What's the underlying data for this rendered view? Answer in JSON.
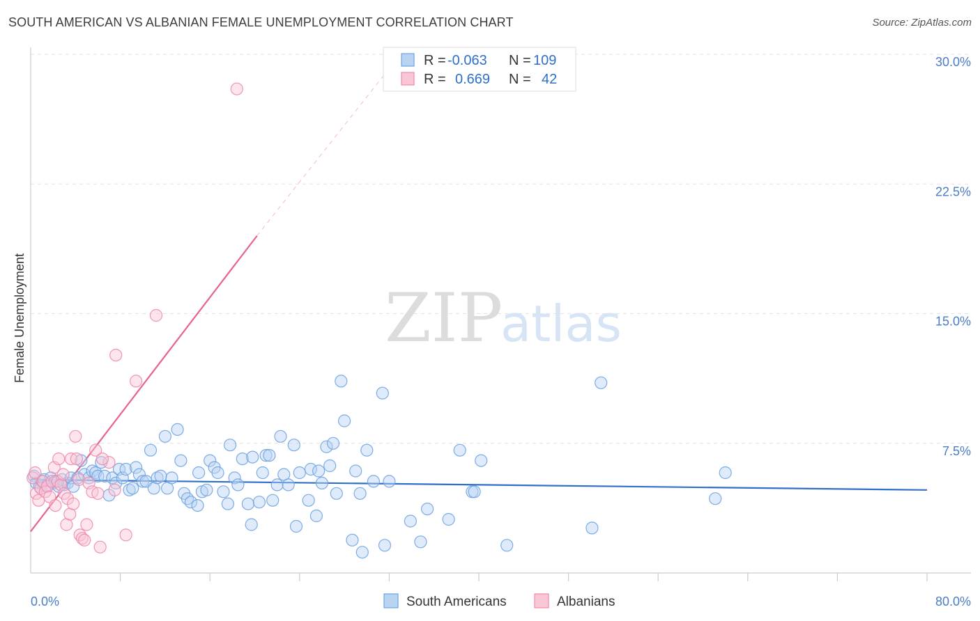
{
  "header": {
    "title": "SOUTH AMERICAN VS ALBANIAN FEMALE UNEMPLOYMENT CORRELATION CHART",
    "source": "Source: ZipAtlas.com"
  },
  "colors": {
    "blue": "#6fa3e0",
    "blue_fill": "#b9d3f3",
    "blue_line": "#2f6fc9",
    "pink": "#f08aab",
    "pink_fill": "#f9c6d6",
    "pink_line": "#e8628d",
    "axis_text": "#4a7cc7"
  },
  "chart_data": {
    "type": "scatter",
    "title": "SOUTH AMERICAN VS ALBANIAN FEMALE UNEMPLOYMENT CORRELATION CHART",
    "xlabel": "",
    "ylabel": "Female Unemployment",
    "xlim": [
      0,
      80
    ],
    "ylim": [
      0,
      30
    ],
    "x_tick_labels": [
      "0.0%",
      "80.0%"
    ],
    "y_ticks": [
      7.5,
      15.0,
      22.5,
      30.0
    ],
    "y_tick_labels": [
      "7.5%",
      "15.0%",
      "22.5%",
      "30.0%"
    ],
    "grid": true,
    "legend": {
      "position": "top-center",
      "entries": [
        {
          "series": "South Americans",
          "r_label": "R =",
          "r_value": "-0.063",
          "n_label": "N =",
          "n_value": "109"
        },
        {
          "series": "Albanians",
          "r_label": "R =",
          "r_value": "0.669",
          "n_label": "N =",
          "n_value": "42"
        }
      ]
    },
    "bottom_legend": [
      "South Americans",
      "Albanians"
    ],
    "watermark": [
      "ZIP",
      "atlas"
    ],
    "series": [
      {
        "name": "South Americans",
        "color": "#6fa3e0",
        "trend": {
          "x": [
            0,
            80
          ],
          "y": [
            5.4,
            4.8
          ],
          "style": "solid"
        },
        "points": [
          [
            0.3,
            5.6
          ],
          [
            0.5,
            5.2
          ],
          [
            0.8,
            5.0
          ],
          [
            1.0,
            5.3
          ],
          [
            1.2,
            5.4
          ],
          [
            1.5,
            5.1
          ],
          [
            1.8,
            5.5
          ],
          [
            2.0,
            5.2
          ],
          [
            2.2,
            5.3
          ],
          [
            2.5,
            5.0
          ],
          [
            2.8,
            5.4
          ],
          [
            3.0,
            5.1
          ],
          [
            3.3,
            5.2
          ],
          [
            3.6,
            5.5
          ],
          [
            3.8,
            5.0
          ],
          [
            4.2,
            5.5
          ],
          [
            4.5,
            6.5
          ],
          [
            4.8,
            5.7
          ],
          [
            5.2,
            5.5
          ],
          [
            5.5,
            5.9
          ],
          [
            5.8,
            5.8
          ],
          [
            6.0,
            5.6
          ],
          [
            6.3,
            6.4
          ],
          [
            6.6,
            5.6
          ],
          [
            7.0,
            4.5
          ],
          [
            7.3,
            5.5
          ],
          [
            7.6,
            5.2
          ],
          [
            7.9,
            6.0
          ],
          [
            8.2,
            5.5
          ],
          [
            8.5,
            6.0
          ],
          [
            8.8,
            4.8
          ],
          [
            9.1,
            4.9
          ],
          [
            9.4,
            6.1
          ],
          [
            9.7,
            5.7
          ],
          [
            10.0,
            5.3
          ],
          [
            10.3,
            5.3
          ],
          [
            10.7,
            7.1
          ],
          [
            11.0,
            4.9
          ],
          [
            11.3,
            5.5
          ],
          [
            11.6,
            5.6
          ],
          [
            12.0,
            7.9
          ],
          [
            12.2,
            4.9
          ],
          [
            12.6,
            5.5
          ],
          [
            13.1,
            8.3
          ],
          [
            13.4,
            6.5
          ],
          [
            13.7,
            4.6
          ],
          [
            14.0,
            4.3
          ],
          [
            14.3,
            4.1
          ],
          [
            14.9,
            3.9
          ],
          [
            15.3,
            4.7
          ],
          [
            15.0,
            5.8
          ],
          [
            15.7,
            4.8
          ],
          [
            16.0,
            6.5
          ],
          [
            16.4,
            6.1
          ],
          [
            16.7,
            5.8
          ],
          [
            17.2,
            4.7
          ],
          [
            17.6,
            4.0
          ],
          [
            17.8,
            7.4
          ],
          [
            18.2,
            5.5
          ],
          [
            18.5,
            5.1
          ],
          [
            18.9,
            6.6
          ],
          [
            19.4,
            4.0
          ],
          [
            19.8,
            6.7
          ],
          [
            19.7,
            2.8
          ],
          [
            20.4,
            4.1
          ],
          [
            20.7,
            5.8
          ],
          [
            21.0,
            6.8
          ],
          [
            21.3,
            6.8
          ],
          [
            21.6,
            4.2
          ],
          [
            22.0,
            5.1
          ],
          [
            22.3,
            7.9
          ],
          [
            22.6,
            5.7
          ],
          [
            23.0,
            5.1
          ],
          [
            23.5,
            7.4
          ],
          [
            23.7,
            2.7
          ],
          [
            24.0,
            5.8
          ],
          [
            24.8,
            4.2
          ],
          [
            25.0,
            6.0
          ],
          [
            25.5,
            3.3
          ],
          [
            25.7,
            5.9
          ],
          [
            26.0,
            5.2
          ],
          [
            26.4,
            7.3
          ],
          [
            26.7,
            6.2
          ],
          [
            27.0,
            7.5
          ],
          [
            27.3,
            4.6
          ],
          [
            27.7,
            11.1
          ],
          [
            28.0,
            8.8
          ],
          [
            28.7,
            1.9
          ],
          [
            29.0,
            5.9
          ],
          [
            29.4,
            4.6
          ],
          [
            29.6,
            1.2
          ],
          [
            30.0,
            7.1
          ],
          [
            30.6,
            5.3
          ],
          [
            31.4,
            10.4
          ],
          [
            31.6,
            1.6
          ],
          [
            32.0,
            5.3
          ],
          [
            33.9,
            3.0
          ],
          [
            34.8,
            1.8
          ],
          [
            35.4,
            3.7
          ],
          [
            37.3,
            3.1
          ],
          [
            38.3,
            7.1
          ],
          [
            39.4,
            4.7
          ],
          [
            39.6,
            4.7
          ],
          [
            40.2,
            6.5
          ],
          [
            42.5,
            1.6
          ],
          [
            50.1,
            2.6
          ],
          [
            50.9,
            11.0
          ],
          [
            61.1,
            4.3
          ],
          [
            62.0,
            5.8
          ]
        ]
      },
      {
        "name": "Albanians",
        "color": "#f08aab",
        "trend": {
          "x": [
            0,
            20.2
          ],
          "y": [
            2.4,
            19.5
          ],
          "style": "solid",
          "extension": {
            "x": [
              20.2,
              33
            ],
            "y": [
              19.5,
              30
            ]
          }
        },
        "points": [
          [
            0.2,
            5.5
          ],
          [
            0.4,
            5.8
          ],
          [
            0.5,
            4.6
          ],
          [
            0.7,
            4.2
          ],
          [
            0.9,
            4.9
          ],
          [
            1.1,
            5.3
          ],
          [
            1.3,
            4.7
          ],
          [
            1.5,
            5.0
          ],
          [
            1.7,
            4.4
          ],
          [
            1.9,
            5.3
          ],
          [
            2.1,
            6.1
          ],
          [
            2.2,
            3.9
          ],
          [
            2.4,
            5.3
          ],
          [
            2.5,
            6.6
          ],
          [
            2.7,
            5.1
          ],
          [
            2.9,
            5.7
          ],
          [
            3.0,
            4.6
          ],
          [
            3.2,
            2.8
          ],
          [
            3.3,
            4.3
          ],
          [
            3.5,
            3.4
          ],
          [
            3.6,
            6.6
          ],
          [
            3.8,
            4.0
          ],
          [
            4.0,
            7.9
          ],
          [
            4.1,
            6.6
          ],
          [
            4.3,
            5.4
          ],
          [
            4.4,
            2.2
          ],
          [
            4.6,
            2.0
          ],
          [
            4.8,
            1.9
          ],
          [
            5.0,
            2.8
          ],
          [
            5.2,
            5.2
          ],
          [
            5.5,
            4.7
          ],
          [
            5.8,
            7.1
          ],
          [
            6.0,
            4.6
          ],
          [
            6.2,
            1.5
          ],
          [
            7.0,
            6.4
          ],
          [
            7.5,
            4.8
          ],
          [
            8.5,
            2.2
          ],
          [
            9.4,
            11.1
          ],
          [
            11.2,
            14.9
          ],
          [
            18.4,
            28.0
          ],
          [
            7.6,
            12.6
          ],
          [
            6.4,
            6.6
          ]
        ]
      }
    ]
  }
}
